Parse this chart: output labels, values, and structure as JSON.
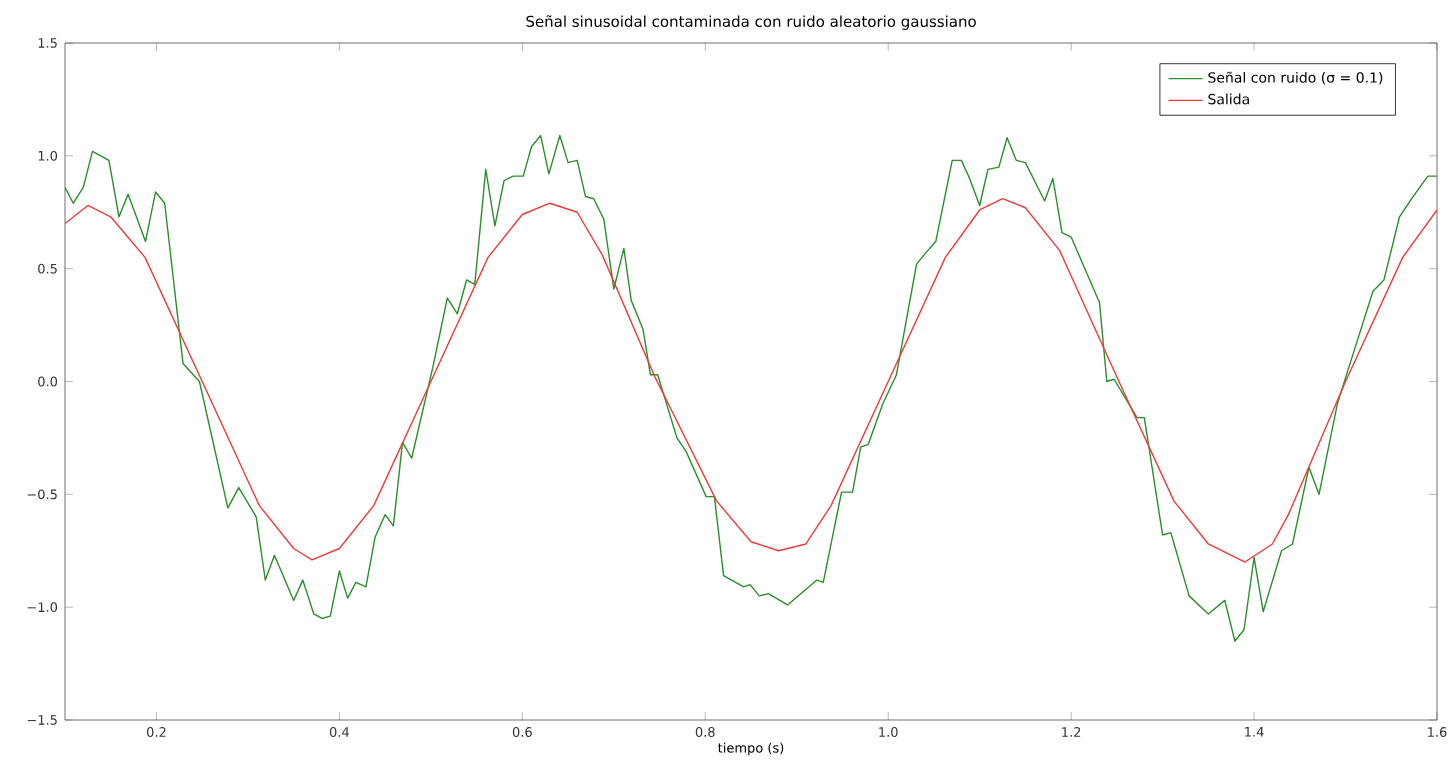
{
  "chart_data": {
    "type": "line",
    "title": "Señal sinusoidal contaminada con ruido aleatorio gaussiano",
    "xlabel": "tiempo (s)",
    "xlim": [
      0.1,
      1.6
    ],
    "ylim": [
      -1.5,
      1.5
    ],
    "xticks": [
      0.2,
      0.4,
      0.6,
      0.8,
      {
        "value": 1,
        "label": "1.0"
      },
      1.2,
      1.4,
      1.6
    ],
    "yticks": [
      {
        "value": -1.5,
        "label": "−1.5"
      },
      {
        "value": -1,
        "label": "−1.0"
      },
      {
        "value": -0.5,
        "label": "−0.5"
      },
      {
        "value": 0,
        "label": "0.0"
      },
      0.5,
      {
        "value": 1,
        "label": "1.0"
      },
      1.5
    ],
    "legend": "top right",
    "series": [
      {
        "name": "Señal con ruido (σ = 0.1)",
        "color": "#2a8f2a",
        "x": [
          0.1,
          0.109,
          0.12,
          0.13,
          0.148,
          0.159,
          0.169,
          0.188,
          0.199,
          0.209,
          0.229,
          0.247,
          0.278,
          0.29,
          0.309,
          0.319,
          0.329,
          0.35,
          0.36,
          0.372,
          0.381,
          0.39,
          0.4,
          0.409,
          0.418,
          0.429,
          0.439,
          0.45,
          0.459,
          0.469,
          0.479,
          0.502,
          0.518,
          0.529,
          0.539,
          0.548,
          0.56,
          0.57,
          0.58,
          0.59,
          0.601,
          0.61,
          0.62,
          0.629,
          0.641,
          0.65,
          0.66,
          0.669,
          0.678,
          0.689,
          0.7,
          0.711,
          0.719,
          0.732,
          0.74,
          0.748,
          0.769,
          0.779,
          0.801,
          0.81,
          0.82,
          0.842,
          0.849,
          0.859,
          0.869,
          0.89,
          0.922,
          0.929,
          0.949,
          0.961,
          0.97,
          0.978,
          0.994,
          1.009,
          1.031,
          1.041,
          1.052,
          1.07,
          1.08,
          1.089,
          1.1,
          1.109,
          1.121,
          1.13,
          1.14,
          1.15,
          1.171,
          1.18,
          1.19,
          1.2,
          1.231,
          1.239,
          1.247,
          1.272,
          1.28,
          1.3,
          1.309,
          1.329,
          1.35,
          1.368,
          1.379,
          1.389,
          1.4,
          1.41,
          1.43,
          1.442,
          1.46,
          1.471,
          1.491,
          1.512,
          1.53,
          1.542,
          1.559,
          1.574,
          1.59,
          1.6
        ],
        "values": [
          0.86,
          0.79,
          0.86,
          1.02,
          0.98,
          0.73,
          0.83,
          0.62,
          0.84,
          0.79,
          0.08,
          0.0,
          -0.56,
          -0.47,
          -0.6,
          -0.88,
          -0.77,
          -0.97,
          -0.88,
          -1.03,
          -1.05,
          -1.04,
          -0.84,
          -0.96,
          -0.89,
          -0.91,
          -0.69,
          -0.59,
          -0.64,
          -0.27,
          -0.34,
          0.06,
          0.37,
          0.3,
          0.45,
          0.43,
          0.94,
          0.69,
          0.89,
          0.91,
          0.91,
          1.04,
          1.09,
          0.92,
          1.09,
          0.97,
          0.98,
          0.82,
          0.81,
          0.72,
          0.41,
          0.59,
          0.36,
          0.23,
          0.03,
          0.03,
          -0.25,
          -0.31,
          -0.51,
          -0.51,
          -0.86,
          -0.91,
          -0.9,
          -0.95,
          -0.94,
          -0.99,
          -0.88,
          -0.89,
          -0.49,
          -0.49,
          -0.29,
          -0.28,
          -0.1,
          0.03,
          0.52,
          0.57,
          0.62,
          0.98,
          0.98,
          0.9,
          0.78,
          0.94,
          0.95,
          1.08,
          0.98,
          0.97,
          0.8,
          0.9,
          0.66,
          0.64,
          0.35,
          0.0,
          0.01,
          -0.16,
          -0.16,
          -0.68,
          -0.67,
          -0.95,
          -1.03,
          -0.97,
          -1.15,
          -1.1,
          -0.78,
          -1.02,
          -0.75,
          -0.72,
          -0.38,
          -0.5,
          -0.1,
          0.17,
          0.4,
          0.45,
          0.73,
          0.82,
          0.91,
          0.91
        ]
      },
      {
        "name": "Salida",
        "color": "#ee3b3b",
        "x": [
          0.1,
          0.125,
          0.15,
          0.1875,
          0.25,
          0.3125,
          0.35,
          0.37,
          0.4,
          0.4375,
          0.5,
          0.5625,
          0.6,
          0.63,
          0.66,
          0.6875,
          0.745,
          0.8125,
          0.85,
          0.88,
          0.91,
          0.9375,
          1.0,
          1.0625,
          1.1,
          1.125,
          1.15,
          1.1875,
          1.25,
          1.3125,
          1.35,
          1.39,
          1.42,
          1.4375,
          1.5,
          1.5625,
          1.6
        ],
        "values": [
          0.7,
          0.78,
          0.73,
          0.55,
          0.0,
          -0.55,
          -0.74,
          -0.79,
          -0.74,
          -0.55,
          0.0,
          0.55,
          0.74,
          0.79,
          0.75,
          0.56,
          0.02,
          -0.53,
          -0.71,
          -0.75,
          -0.72,
          -0.55,
          0.0,
          0.55,
          0.76,
          0.81,
          0.77,
          0.58,
          0.02,
          -0.53,
          -0.72,
          -0.8,
          -0.72,
          -0.59,
          0.0,
          0.55,
          0.76
        ]
      }
    ]
  }
}
